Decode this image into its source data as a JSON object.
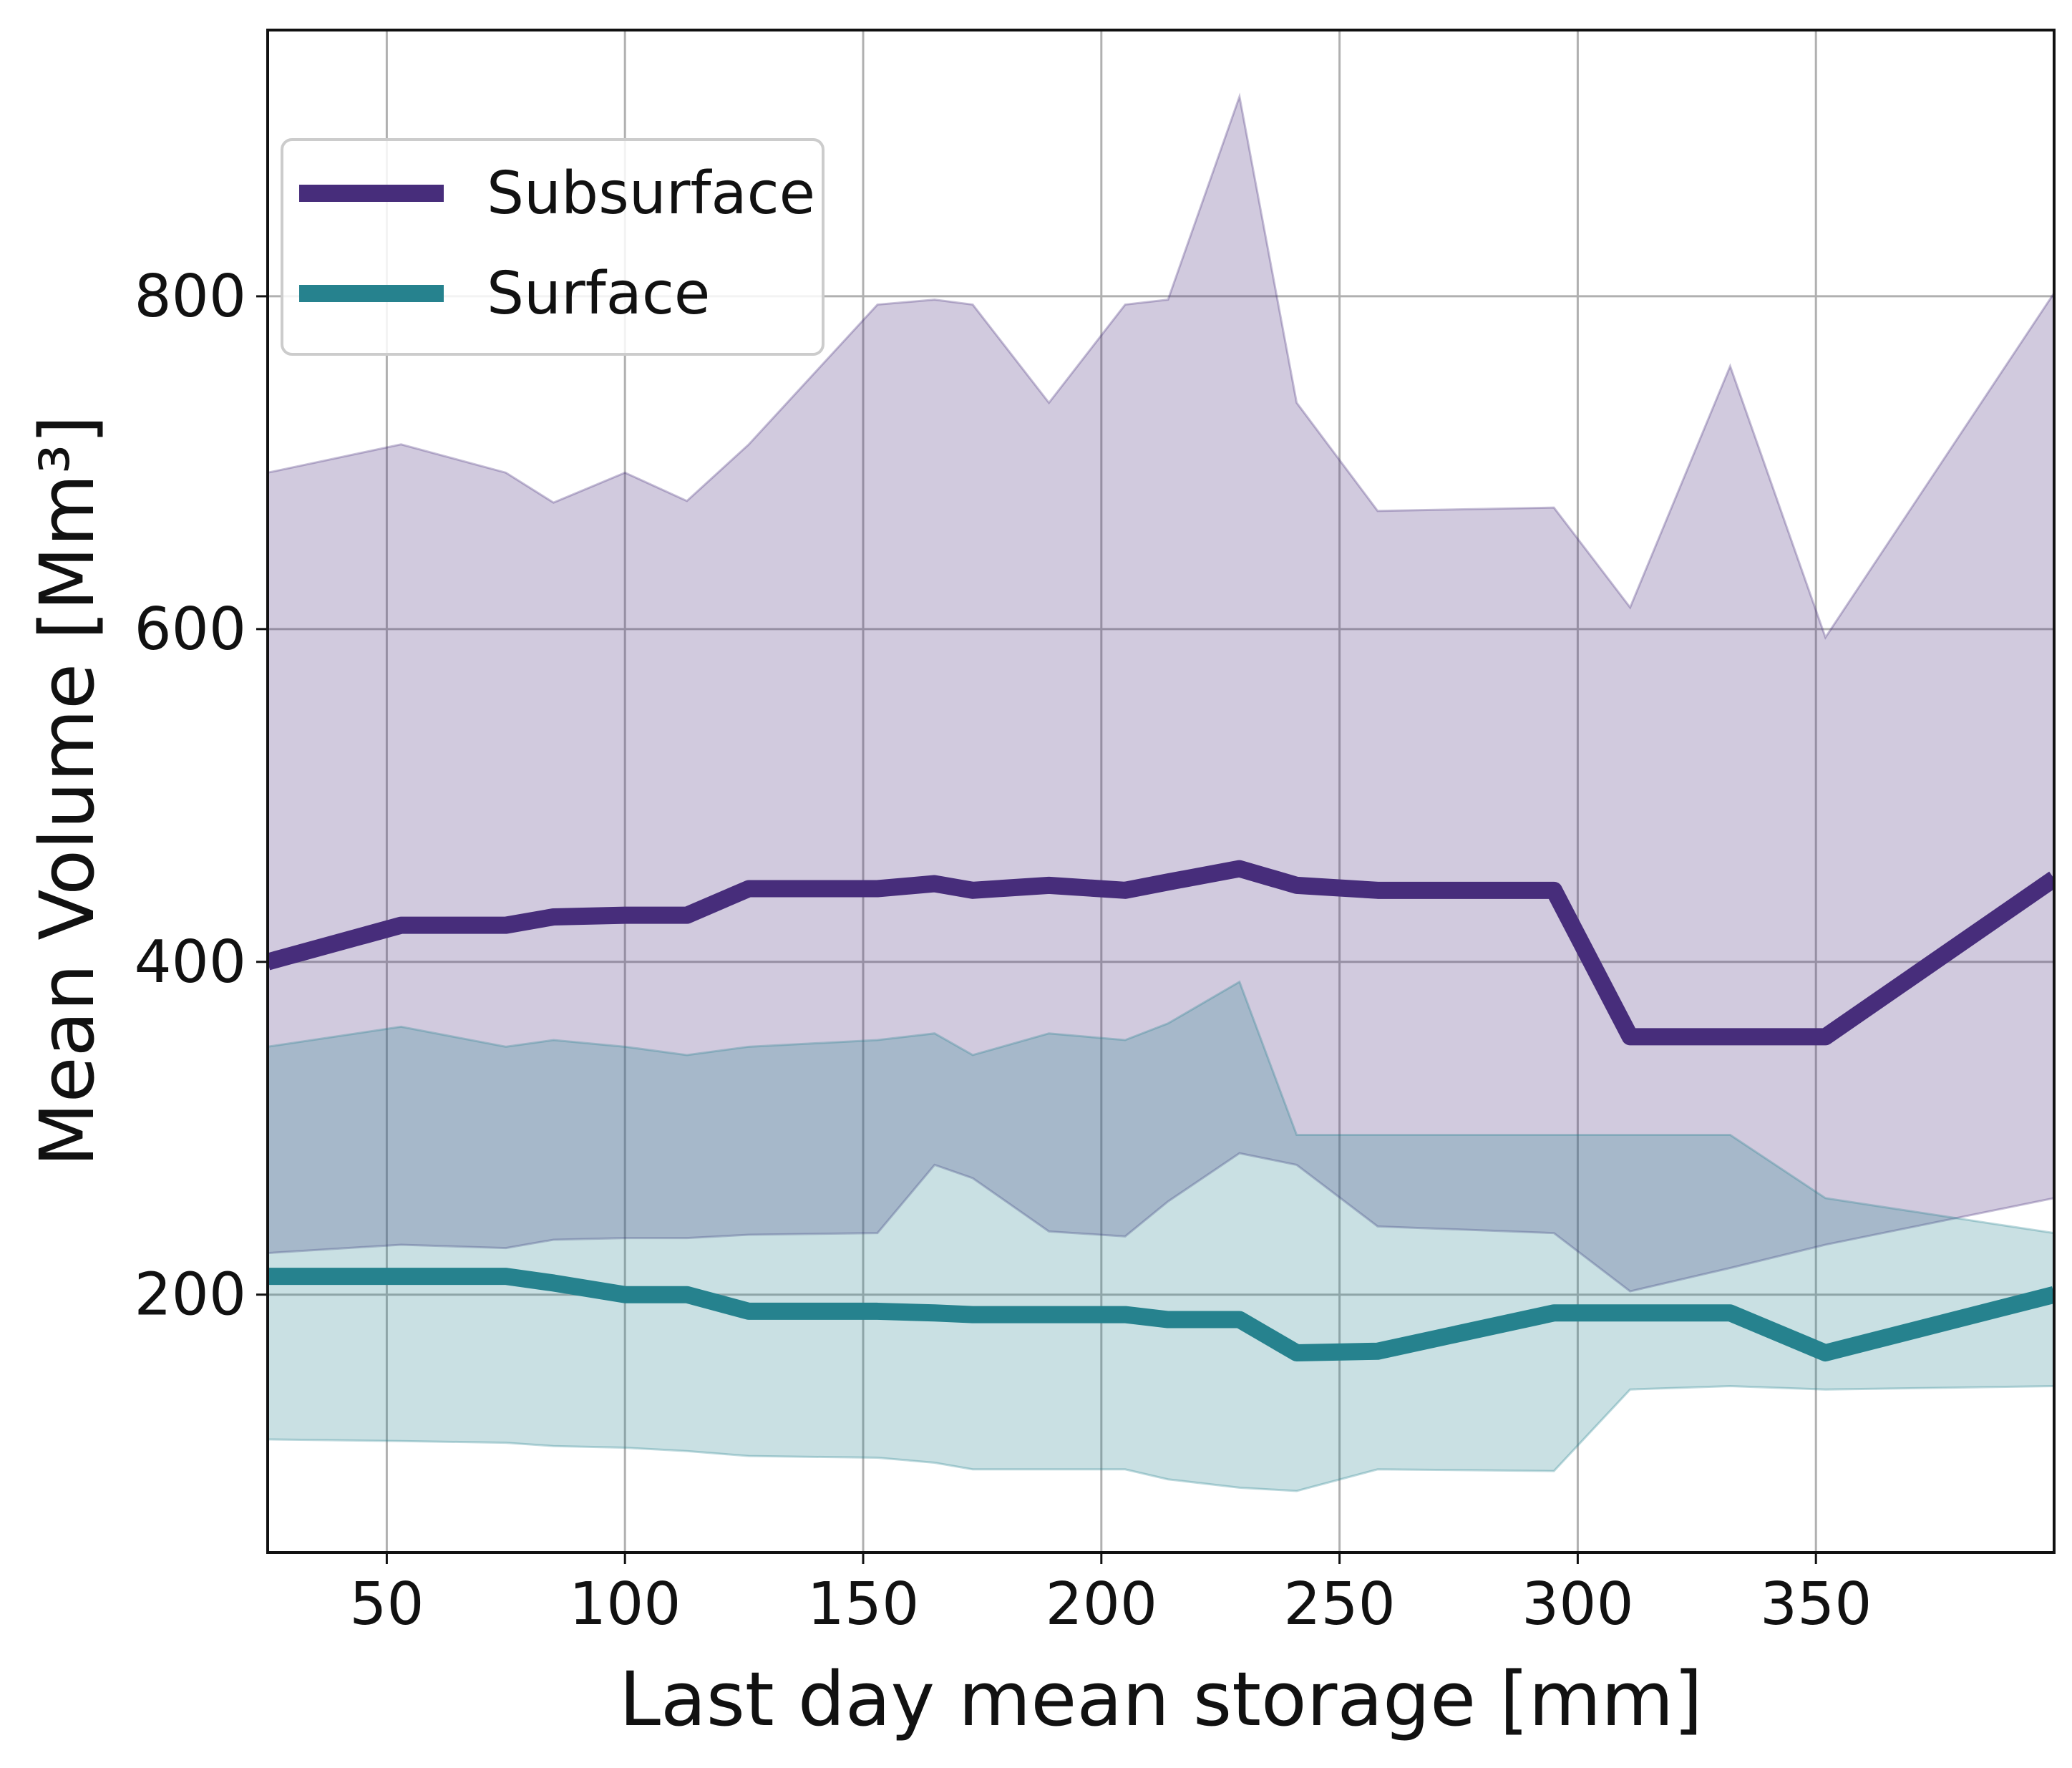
{
  "chart_data": {
    "type": "line",
    "xlabel": "Last day mean storage [mm]",
    "ylabel": "Mean Volume [Mm³]",
    "xlim": [
      25,
      400
    ],
    "ylim": [
      45,
      960
    ],
    "xticks": [
      50,
      100,
      150,
      200,
      250,
      300,
      350
    ],
    "yticks": [
      200,
      400,
      600,
      800
    ],
    "grid": true,
    "legend": "upper left",
    "series": [
      {
        "name": "Subsurface",
        "color": "#472d7b",
        "x": [
          25,
          53,
          75,
          85,
          100,
          113,
          126,
          153,
          165,
          173,
          189,
          205,
          214,
          229,
          241,
          258,
          295,
          311,
          332,
          352,
          400
        ],
        "y": [
          400,
          422,
          422,
          427,
          428,
          428,
          444,
          444,
          447,
          443,
          446,
          443,
          448,
          456,
          446,
          443,
          443,
          355,
          355,
          355,
          450
        ],
        "upper": [
          694,
          711,
          694,
          676,
          694,
          677,
          711,
          795,
          798,
          795,
          736,
          795,
          798,
          920,
          736,
          671,
          673,
          613,
          758,
          595,
          802
        ],
        "lower": [
          225,
          230,
          228,
          233,
          234,
          234,
          236,
          237,
          278,
          270,
          238,
          235,
          256,
          285,
          278,
          241,
          237,
          202,
          216,
          230,
          258
        ]
      },
      {
        "name": "Surface",
        "color": "#26828e",
        "x": [
          25,
          53,
          75,
          85,
          100,
          113,
          126,
          153,
          165,
          173,
          189,
          205,
          214,
          229,
          241,
          258,
          295,
          311,
          332,
          352,
          400
        ],
        "y": [
          211,
          211,
          211,
          207,
          200,
          200,
          190,
          190,
          189,
          188,
          188,
          188,
          185,
          185,
          165,
          166,
          189,
          189,
          189,
          165,
          200
        ],
        "upper": [
          349,
          361,
          349,
          353,
          349,
          344,
          349,
          353,
          357,
          344,
          357,
          353,
          363,
          388,
          296,
          296,
          296,
          296,
          296,
          258,
          237
        ],
        "lower": [
          113,
          112,
          111,
          109,
          108,
          106,
          103,
          102,
          99,
          95,
          95,
          95,
          89,
          84,
          82,
          95,
          94,
          143,
          145,
          143,
          145
        ]
      }
    ]
  }
}
